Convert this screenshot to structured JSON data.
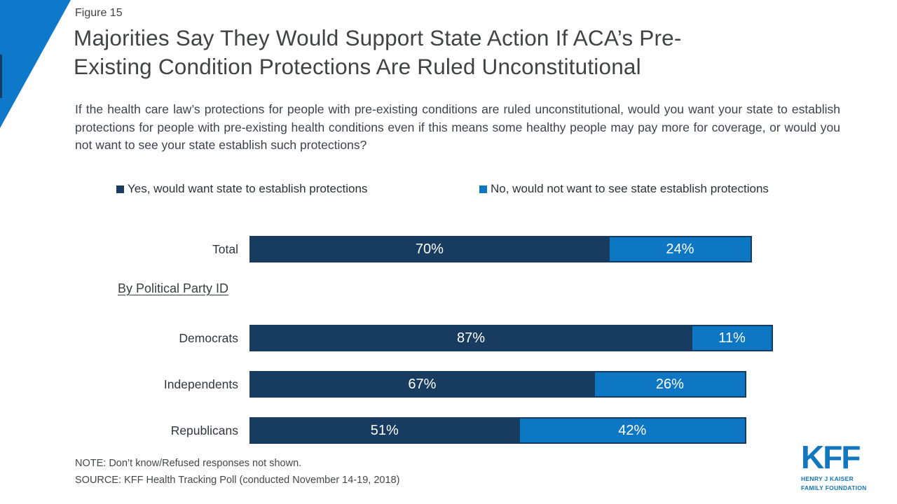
{
  "figure_label": "Figure 15",
  "title_line1": "Majorities Say They Would Support State Action If ACA’s Pre-",
  "title_line2": "Existing Condition Protections Are Ruled Unconstitutional",
  "subtitle": "If the health care law’s protections for people with pre-existing conditions are ruled unconstitutional, would you want your state to establish protections for people with pre-existing health conditions even if this means some healthy people may pay more for coverage, or would you not want to see your state establish such protections?",
  "legend": {
    "yes_label": "Yes, would want state to establish protections",
    "no_label": "No, would not want to see state establish protections"
  },
  "group_heading": "By Political Party ID",
  "chart_data": {
    "type": "bar",
    "orientation": "horizontal",
    "stacked": true,
    "categories": [
      "Total",
      "Democrats",
      "Independents",
      "Republicans"
    ],
    "series": [
      {
        "name": "Yes, would want state to establish protections",
        "color": "#183c60",
        "values": [
          70,
          87,
          67,
          51
        ]
      },
      {
        "name": "No, would not want to see state establish protections",
        "color": "#0d77c4",
        "values": [
          24,
          11,
          26,
          42
        ]
      }
    ],
    "xlim": [
      0,
      100
    ],
    "value_suffix": "%",
    "grid": false,
    "legend_position": "top",
    "value_labels": "inside-center"
  },
  "note": "NOTE: Don’t know/Refused responses not shown.",
  "source": "SOURCE: KFF Health Tracking Poll (conducted November 14-19, 2018)",
  "logo": {
    "text": "KFF",
    "line1": "HENRY J KAISER",
    "line2": "FAMILY FOUNDATION",
    "color": "#1377bd"
  },
  "colors": {
    "bar_yes_navy": "#183c60",
    "bar_no_blue": "#0d77c4",
    "corner_triangle_blue": "#0e79ca",
    "corner_sliver_navy": "#183c60"
  }
}
